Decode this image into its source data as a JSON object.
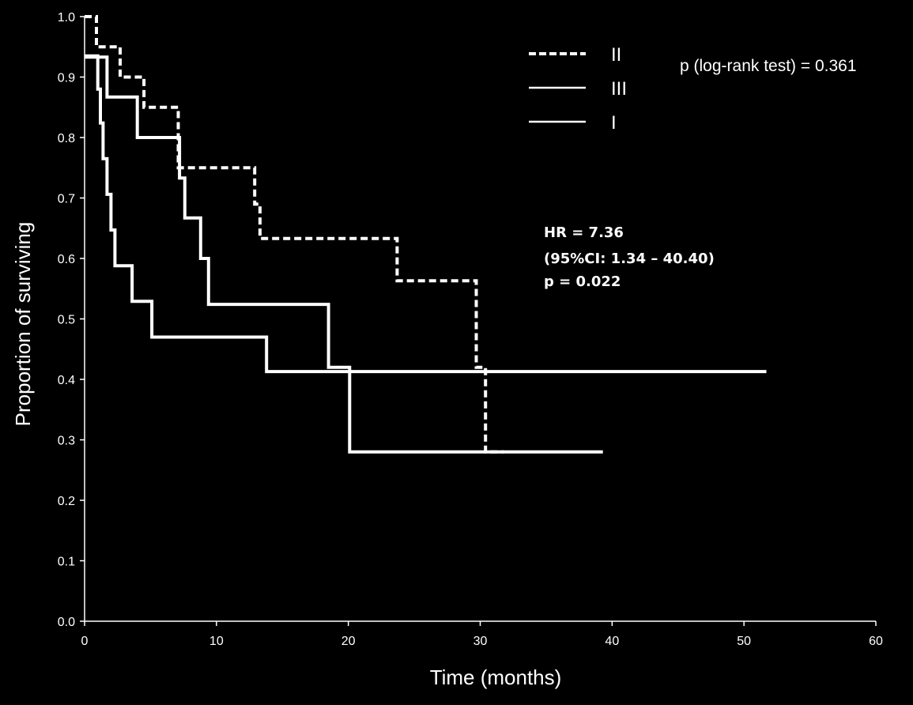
{
  "chart_data": {
    "type": "line",
    "subtype": "kaplan-meier step",
    "xlabel": "Time (months)",
    "ylabel": "Proportion of surviving",
    "xlim": [
      0,
      60
    ],
    "ylim": [
      0.0,
      1.0
    ],
    "xticks": [
      "0",
      "10",
      "20",
      "30",
      "40",
      "50",
      "60"
    ],
    "yticks": [
      "0.0",
      "0.1",
      "0.2",
      "0.3",
      "0.4",
      "0.5",
      "0.6",
      "0.7",
      "0.8",
      "0.9",
      "1.0"
    ],
    "grid": false,
    "legend_position": "top-right",
    "annotations": {
      "logrank": "p (log-rank test) = 0.361",
      "hr_line1": "HR = 7.36",
      "hr_line2": "(95%CI: 1.34 – 40.40)",
      "hr_line3": "p = 0.022"
    },
    "series": [
      {
        "name": "II",
        "style": "dashed",
        "color": "#ffffff",
        "x": [
          0,
          0.9,
          1.3,
          2.7,
          4.5,
          7.1,
          12.9,
          13.3,
          23.7,
          29.7,
          30.4,
          31.8
        ],
        "y": [
          1.0,
          0.95,
          0.95,
          0.9,
          0.85,
          0.75,
          0.69,
          0.633,
          0.563,
          0.42,
          0.28,
          0.28
        ]
      },
      {
        "name": "III",
        "style": "solid",
        "color": "#ffffff",
        "x": [
          0,
          1.0,
          1.2,
          1.4,
          1.7,
          2.0,
          2.3,
          3.6,
          5.1,
          13.8,
          51.7
        ],
        "y": [
          0.935,
          0.88,
          0.824,
          0.765,
          0.706,
          0.647,
          0.588,
          0.529,
          0.47,
          0.413,
          0.413
        ]
      },
      {
        "name": "I",
        "style": "solid",
        "color": "#ffffff",
        "x": [
          0,
          1.7,
          4.0,
          7.2,
          7.6,
          8.8,
          9.4,
          18.5,
          20.1,
          39.3
        ],
        "y": [
          0.933,
          0.867,
          0.8,
          0.733,
          0.667,
          0.6,
          0.524,
          0.42,
          0.28,
          0.28
        ]
      }
    ]
  }
}
